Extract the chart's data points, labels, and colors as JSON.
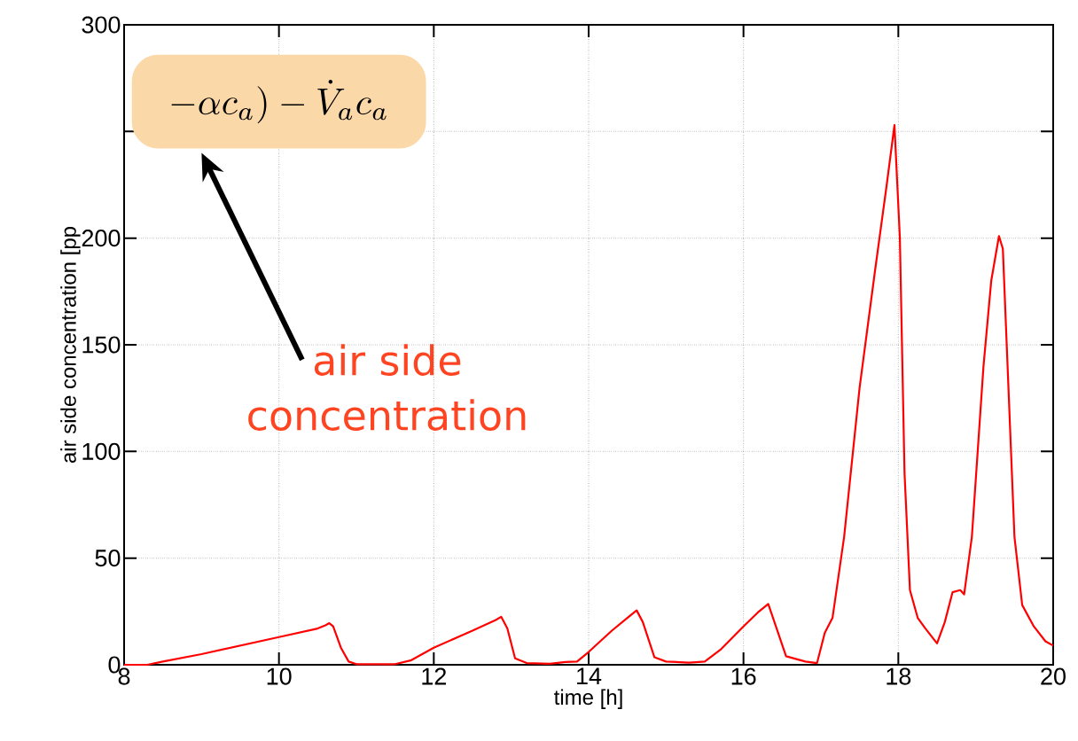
{
  "chart_data": {
    "type": "line",
    "xlabel": "time [h]",
    "ylabel": "air side concentration [pp",
    "annotations": [
      "-\\alpha c_a) - \\dot{V}_a c_a",
      "air side concentration"
    ],
    "xlim": [
      8,
      20
    ],
    "xticks": [
      8,
      10,
      12,
      14,
      16,
      18,
      20
    ],
    "ylim": [
      0,
      300
    ],
    "yticks": [
      0,
      50,
      100,
      150,
      200,
      {
        "value": 250,
        "label": null
      },
      300
    ],
    "grid": true,
    "marker": "none",
    "line_style": "solid",
    "series": [
      {
        "color": "#ff0000",
        "x": [
          8.0,
          8.3,
          8.5,
          9.0,
          9.5,
          10.0,
          10.5,
          10.6,
          10.65,
          10.7,
          10.8,
          10.9,
          11.0,
          11.5,
          11.7,
          12.0,
          12.5,
          12.8,
          12.87,
          12.95,
          13.05,
          13.2,
          13.5,
          13.7,
          13.85,
          14.0,
          14.3,
          14.5,
          14.62,
          14.7,
          14.85,
          15.0,
          15.3,
          15.5,
          15.7,
          16.0,
          16.2,
          16.32,
          16.4,
          16.55,
          16.8,
          16.95,
          17.05,
          17.15,
          17.3,
          17.5,
          17.7,
          17.85,
          17.95,
          18.02,
          18.08,
          18.15,
          18.25,
          18.35,
          18.5,
          18.6,
          18.7,
          18.8,
          18.85,
          18.95,
          19.1,
          19.2,
          19.3,
          19.35,
          19.4,
          19.5,
          19.6,
          19.75,
          19.9,
          20.0
        ],
        "values": [
          0,
          0,
          1.5,
          5,
          9,
          13,
          17,
          18.5,
          19.5,
          18,
          8,
          1.5,
          0.3,
          0.3,
          2,
          8,
          16,
          21,
          22.5,
          17,
          3,
          0.8,
          0.5,
          1.3,
          1.5,
          6,
          16,
          22,
          25.5,
          20,
          3.5,
          1.5,
          1,
          1.5,
          7,
          18,
          25,
          28.5,
          20,
          4,
          1.5,
          0.8,
          15,
          22,
          60,
          130,
          185,
          225,
          253,
          200,
          90,
          35,
          22,
          17,
          10,
          20,
          34,
          35,
          33,
          60,
          140,
          180,
          201,
          195,
          150,
          60,
          28,
          18,
          11,
          9
        ]
      }
    ]
  }
}
